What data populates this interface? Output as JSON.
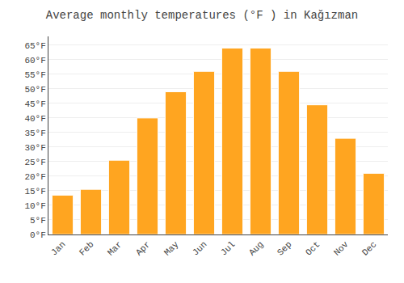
{
  "chart_data": {
    "type": "bar",
    "title": "Average monthly temperatures (°F ) in Kağızman",
    "categories": [
      "Jan",
      "Feb",
      "Mar",
      "Apr",
      "May",
      "Jun",
      "Jul",
      "Aug",
      "Sep",
      "Oct",
      "Nov",
      "Dec"
    ],
    "values": [
      13.5,
      15.5,
      25.5,
      40,
      49,
      56,
      64,
      64,
      56,
      44.5,
      33,
      21
    ],
    "color": "#FFA520",
    "ylim": [
      0,
      68
    ],
    "yticks": [
      {
        "value": 0,
        "label": "0°F"
      },
      {
        "value": 5,
        "label": "5°F"
      },
      {
        "value": 10,
        "label": "10°F"
      },
      {
        "value": 15,
        "label": "15°F"
      },
      {
        "value": 20,
        "label": "20°F"
      },
      {
        "value": 25,
        "label": "25°F"
      },
      {
        "value": 30,
        "label": "30°F"
      },
      {
        "value": 35,
        "label": "35°F"
      },
      {
        "value": 40,
        "label": "40°F"
      },
      {
        "value": 45,
        "label": "45°F"
      },
      {
        "value": 50,
        "label": "50°F"
      },
      {
        "value": 55,
        "label": "55°F"
      },
      {
        "value": 60,
        "label": "60°F"
      },
      {
        "value": 65,
        "label": "65°F"
      }
    ],
    "grid": true
  }
}
